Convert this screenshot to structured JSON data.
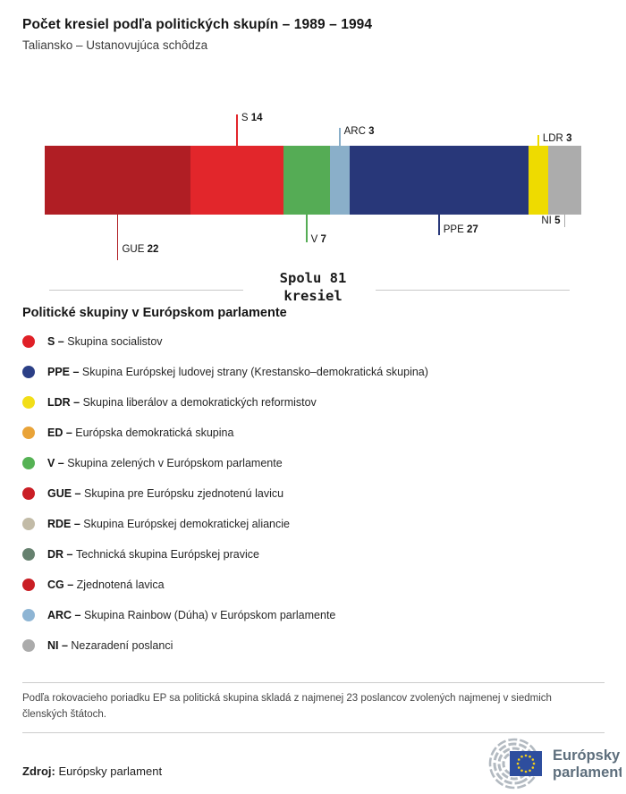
{
  "header": {
    "title": "Počet kresiel podľa politických skupín – 1989 – 1994",
    "subtitle": "Taliansko – Ustanovujúca schôdza"
  },
  "chart_data": {
    "type": "bar",
    "orientation": "horizontal-stacked",
    "title": "Počet kresiel podľa politických skupín – 1989 – 1994",
    "subtitle": "Taliansko – Ustanovujúca schôdza",
    "total_seats": 81,
    "total_line1": "Spolu 81",
    "total_line2": "kresiel",
    "categories": [
      "GUE",
      "S",
      "V",
      "ARC",
      "PPE",
      "LDR",
      "NI"
    ],
    "values": [
      22,
      14,
      7,
      3,
      27,
      3,
      5
    ],
    "segments": [
      {
        "code": "GUE",
        "seats": 22,
        "color": "#B01E24",
        "callout": "below"
      },
      {
        "code": "S",
        "seats": 14,
        "color": "#E2262B",
        "callout": "above"
      },
      {
        "code": "V",
        "seats": 7,
        "color": "#55AC55",
        "callout": "below"
      },
      {
        "code": "ARC",
        "seats": 3,
        "color": "#8AAFC9",
        "callout": "above"
      },
      {
        "code": "PPE",
        "seats": 27,
        "color": "#283779",
        "callout": "below"
      },
      {
        "code": "LDR",
        "seats": 3,
        "color": "#EEDB00",
        "callout": "above"
      },
      {
        "code": "NI",
        "seats": 5,
        "color": "#ACACAC",
        "callout": "below"
      }
    ]
  },
  "legend": {
    "heading": "Politické skupiny v Európskom parlamente",
    "separator": "–",
    "items": [
      {
        "code": "S",
        "color": "#E02027",
        "name": "Skupina socialistov"
      },
      {
        "code": "PPE",
        "color": "#2B3F86",
        "name": "Skupina Európskej ludovej strany (Krestansko–demokratická skupina)"
      },
      {
        "code": "LDR",
        "color": "#F2DE18",
        "name": "Skupina liberálov a demokratických reformistov"
      },
      {
        "code": "ED",
        "color": "#E9A338",
        "name": "Európska demokratická skupina"
      },
      {
        "code": "V",
        "color": "#55B254",
        "name": "Skupina zelených v Európskom parlamente"
      },
      {
        "code": "GUE",
        "color": "#CA1E25",
        "name": "Skupina pre Európsku zjednotenú lavicu"
      },
      {
        "code": "RDE",
        "color": "#C2BBA7",
        "name": "Skupina Európskej demokratickej aliancie"
      },
      {
        "code": "DR",
        "color": "#66816F",
        "name": "Technická skupina Európskej pravice"
      },
      {
        "code": "CG",
        "color": "#C91E24",
        "name": "Zjednotená lavica"
      },
      {
        "code": "ARC",
        "color": "#8EB5D4",
        "name": "Skupina Rainbow (Dúha) v Európskom parlamente"
      },
      {
        "code": "NI",
        "color": "#ABABAB",
        "name": "Nezaradení poslanci"
      }
    ]
  },
  "footnote": "Podľa rokovacieho poriadku EP sa politická skupina skladá z najmenej 23 poslancov zvolených najmenej v siedmich členských štátoch.",
  "source": {
    "label": "Zdroj:",
    "value": "Európsky parlament"
  },
  "logo": {
    "line1": "Európsky",
    "line2": "parlament",
    "flag_color": "#2E4E9E",
    "star_color": "#F7D117",
    "arc_color": "#B3BAC1",
    "text_color": "#5D6E7C"
  }
}
